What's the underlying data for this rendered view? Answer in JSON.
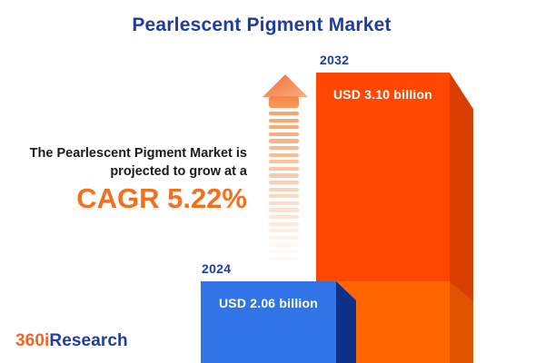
{
  "title": "Pearlescent Pigment Market",
  "tagline": {
    "line1": "The Pearlescent Pigment Market is",
    "line2": "projected to grow at a",
    "cagr": "CAGR 5.22%"
  },
  "logo": {
    "part1": "360i",
    "part2": "Research"
  },
  "chart_data": {
    "type": "bar",
    "title": "Pearlescent Pigment Market",
    "categories": [
      "2024",
      "2032"
    ],
    "values": [
      2.06,
      3.1
    ],
    "value_labels": [
      "USD 2.06 billion",
      "USD 3.10 billion"
    ],
    "unit": "USD billion",
    "cagr_percent": 5.22,
    "annotations": [
      "The Pearlescent Pigment Market is projected to grow at a CAGR 5.22%"
    ],
    "legend": "none",
    "axes_visible": false,
    "bar_colors": {
      "2024": "#3074E8",
      "2032": "#FE4700"
    }
  },
  "colors": {
    "title_blue": "#1E3CA6",
    "text_dark": "#1B1B1B",
    "accent_orange": "#F3701D",
    "stripe_orange": "#F89E60",
    "bar_2032_front": "#FE4700",
    "bar_2032_front_lower": "#FF6500",
    "bar_2032_side": "#D83E00",
    "bar_2032_side_lower": "#E05400",
    "bar_2024_front": "#3074E8",
    "bar_2024_side": "#0D3189",
    "logo_orange": "#F26522",
    "logo_blue": "#203DA6"
  }
}
